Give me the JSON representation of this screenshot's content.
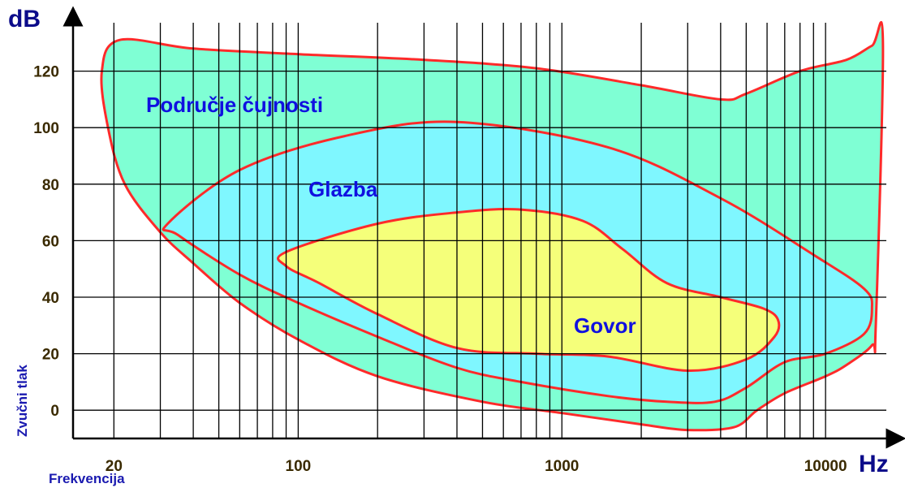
{
  "chart_data": {
    "type": "area",
    "title": "",
    "xlabel": "Frekvencija",
    "ylabel": "Zvučni tlak",
    "x_unit": "Hz",
    "y_unit": "dB",
    "x_scale": "log",
    "xlim": [
      14,
      17000
    ],
    "ylim": [
      -10,
      140
    ],
    "x_tick_labels": [
      {
        "value": 20,
        "label": "20"
      },
      {
        "value": 100,
        "label": "100"
      },
      {
        "value": 1000,
        "label": "1000"
      },
      {
        "value": 10000,
        "label": "10000"
      }
    ],
    "y_ticks": [
      0,
      20,
      40,
      60,
      80,
      100,
      120
    ],
    "grid": true,
    "series": [
      {
        "name": "Područje čujnosti",
        "color": "#7fffd4",
        "outline_color": "#ff2a2a",
        "points": [
          [
            21,
            131
          ],
          [
            40,
            128
          ],
          [
            100,
            126
          ],
          [
            300,
            124
          ],
          [
            800,
            121
          ],
          [
            2000,
            115
          ],
          [
            4000,
            110
          ],
          [
            5000,
            112
          ],
          [
            8000,
            120
          ],
          [
            12000,
            124
          ],
          [
            15000,
            129
          ],
          [
            16500,
            130
          ],
          [
            15500,
            30
          ],
          [
            15000,
            23
          ],
          [
            12000,
            16
          ],
          [
            10000,
            12
          ],
          [
            7000,
            6
          ],
          [
            5500,
            0
          ],
          [
            4500,
            -6
          ],
          [
            3000,
            -7
          ],
          [
            2000,
            -5
          ],
          [
            1000,
            -1
          ],
          [
            500,
            3
          ],
          [
            200,
            12
          ],
          [
            100,
            25
          ],
          [
            60,
            38
          ],
          [
            40,
            52
          ],
          [
            30,
            63
          ],
          [
            22,
            80
          ],
          [
            19,
            100
          ],
          [
            18,
            120
          ]
        ]
      },
      {
        "name": "Glazba",
        "color": "#7ff7ff",
        "outline_color": "#ff2a2a",
        "points": [
          [
            32,
            66
          ],
          [
            60,
            85
          ],
          [
            150,
            97
          ],
          [
            400,
            102
          ],
          [
            1500,
            93
          ],
          [
            4000,
            75
          ],
          [
            9000,
            55
          ],
          [
            14000,
            43
          ],
          [
            15000,
            36
          ],
          [
            14000,
            27
          ],
          [
            10000,
            20
          ],
          [
            7000,
            17
          ],
          [
            5000,
            8
          ],
          [
            3800,
            3
          ],
          [
            2500,
            3
          ],
          [
            1500,
            5
          ],
          [
            700,
            10
          ],
          [
            400,
            15
          ],
          [
            200,
            26
          ],
          [
            100,
            38
          ],
          [
            60,
            48
          ],
          [
            35,
            62
          ]
        ]
      },
      {
        "name": "Govor",
        "color": "#f5ff7a",
        "outline_color": "#ff2a2a",
        "points": [
          [
            90,
            56
          ],
          [
            200,
            66
          ],
          [
            400,
            70
          ],
          [
            700,
            71
          ],
          [
            1200,
            67
          ],
          [
            1700,
            57
          ],
          [
            2500,
            45
          ],
          [
            4000,
            40
          ],
          [
            5800,
            36
          ],
          [
            6600,
            32
          ],
          [
            6400,
            26
          ],
          [
            5000,
            18
          ],
          [
            3000,
            14
          ],
          [
            1500,
            19
          ],
          [
            800,
            20
          ],
          [
            400,
            22
          ],
          [
            200,
            34
          ],
          [
            120,
            45
          ],
          [
            90,
            51
          ]
        ]
      }
    ]
  }
}
